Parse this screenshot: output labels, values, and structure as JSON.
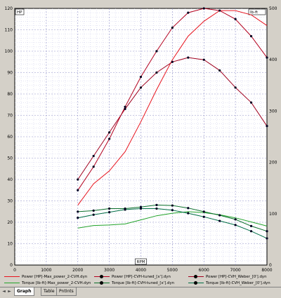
{
  "chart_data": {
    "type": "line",
    "xlabel": "RPM",
    "y_left_label": "HP",
    "y_right_label": "lb-ft",
    "xlim": [
      0,
      8000
    ],
    "y_left_lim": [
      0,
      120
    ],
    "y_right_lim": [
      0,
      500
    ],
    "grid": true,
    "legend_position": "bottom",
    "x_ticks": [
      0,
      1000,
      2000,
      3000,
      4000,
      5000,
      6000,
      7000,
      8000
    ],
    "y_left_ticks": [
      0,
      10,
      20,
      30,
      40,
      50,
      60,
      70,
      80,
      90,
      100,
      110,
      120
    ],
    "y_right_ticks": [
      0,
      100,
      200,
      300,
      400,
      500
    ],
    "series": [
      {
        "name": "Power [HP]-Max_power_2-CVH.dyn",
        "axis": "left",
        "color": "#e8141e",
        "markers": false,
        "x": [
          2000,
          2500,
          3000,
          3500,
          4000,
          4500,
          5000,
          5500,
          6000,
          6500,
          7000,
          7500,
          8000
        ],
        "y": [
          28,
          38,
          44,
          53,
          67,
          82,
          96,
          107,
          114,
          119,
          119,
          117,
          112
        ]
      },
      {
        "name": "Power [HP]-CVH-tuned_[x'].dyn",
        "axis": "left",
        "color": "#b4001e",
        "markers": true,
        "x": [
          2000,
          2500,
          3000,
          3500,
          4000,
          4500,
          5000,
          5500,
          6000,
          6500,
          7000,
          7500,
          8000
        ],
        "y": [
          35,
          46,
          59,
          74,
          88,
          100,
          111,
          118,
          120,
          119,
          115,
          107,
          97
        ]
      },
      {
        "name": "Power [HP]-CVH_Weber_[0'].dyn",
        "axis": "left",
        "color": "#a0001e",
        "markers": true,
        "x": [
          2000,
          2500,
          3000,
          3500,
          4000,
          4500,
          5000,
          5500,
          6000,
          6500,
          7000,
          7500,
          8000
        ],
        "y": [
          40,
          51,
          62,
          73,
          83,
          90,
          95,
          97,
          96,
          91,
          83,
          76,
          65
        ]
      },
      {
        "name": "Torque [lb-ft]-Max_power_2-CVH.dyn",
        "axis": "right",
        "color": "#22a32a",
        "markers": false,
        "x": [
          2000,
          2500,
          3000,
          3500,
          4000,
          4500,
          5000,
          5500,
          6000,
          6500,
          7000,
          7500,
          8000
        ],
        "y": [
          72,
          77,
          78,
          80,
          88,
          96,
          101,
          104,
          102,
          98,
          92,
          84,
          76
        ]
      },
      {
        "name": "Torque [lb-ft]-CVH-tuned_[x'].dyn",
        "axis": "right",
        "color": "#0a6e2a",
        "markers": true,
        "x": [
          2000,
          2500,
          3000,
          3500,
          4000,
          4500,
          5000,
          5500,
          6000,
          6500,
          7000,
          7500,
          8000
        ],
        "y": [
          104,
          106,
          110,
          110,
          113,
          117,
          116,
          111,
          104,
          97,
          89,
          76,
          66
        ]
      },
      {
        "name": "Torque [lb-ft]-CVH_Weber_[0'].dyn",
        "axis": "right",
        "color": "#006e46",
        "markers": true,
        "x": [
          2000,
          2500,
          3000,
          3500,
          4000,
          4500,
          5000,
          5500,
          6000,
          6500,
          7000,
          7500,
          8000
        ],
        "y": [
          92,
          98,
          103,
          108,
          110,
          110,
          107,
          101,
          94,
          86,
          78,
          66,
          52
        ]
      }
    ]
  },
  "tabs": {
    "graph": "Graph",
    "table": "Table",
    "points": "PntInts"
  },
  "nav": {
    "prev": "◄",
    "next": "►"
  }
}
